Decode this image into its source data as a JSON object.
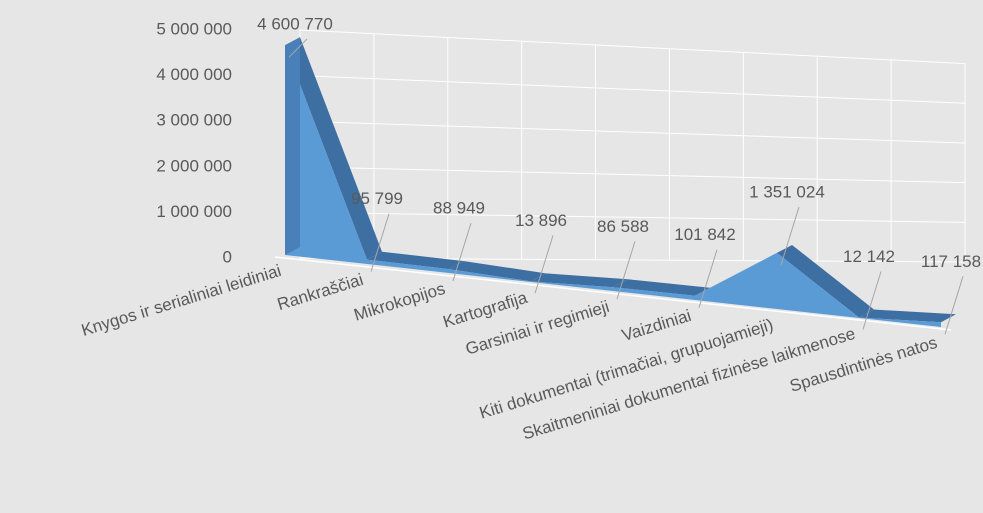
{
  "chart_data": {
    "type": "area3d",
    "categories": [
      "Knygos ir serialiniai leidiniai",
      "Rankraščiai",
      "Mikrokopijos",
      "Kartografija",
      "Garsiniai ir regimieji",
      "Vaizdiniai",
      "Kiti dokumentai (trimačiai, grupuojamieji)",
      "Skaitmeniniai dokumentai fizinėse laikmenose",
      "Spausdintinės natos"
    ],
    "values": [
      4600770,
      95799,
      88949,
      13896,
      86588,
      101842,
      1351024,
      12142,
      117158
    ],
    "value_labels": [
      "4 600 770",
      "95 799",
      "88 949",
      "13 896",
      "86 588",
      "101 842",
      "1 351 024",
      "12 142",
      "117 158"
    ],
    "color": "#5b9bd5",
    "ylim": [
      0,
      5000000
    ],
    "yticks": [
      0,
      {
        "value": 1000000,
        "label": "1 000 000"
      },
      {
        "value": 2000000,
        "label": "2 000 000"
      },
      {
        "value": 3000000,
        "label": "3 000 000"
      },
      {
        "value": 4000000,
        "label": "4 000 000"
      },
      {
        "value": 5000000,
        "label": "5 000 000"
      }
    ],
    "grid": true
  }
}
